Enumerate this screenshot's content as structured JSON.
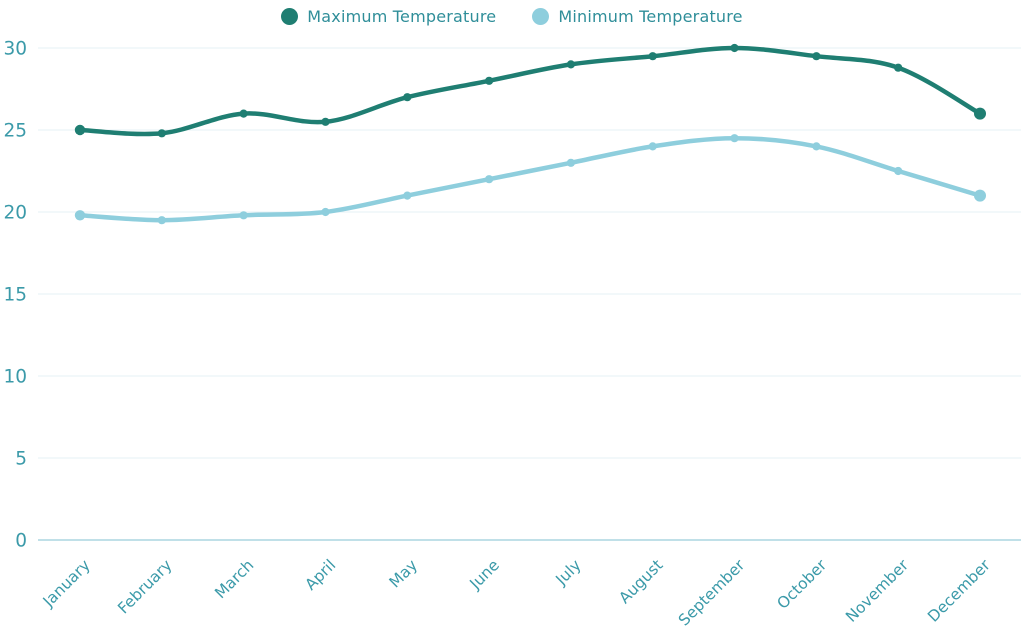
{
  "chart_data": {
    "type": "line",
    "title": "",
    "xlabel": "",
    "ylabel": "",
    "curve": "smooth",
    "grid": true,
    "legend_position": "top",
    "categories": [
      "January",
      "February",
      "March",
      "April",
      "May",
      "June",
      "July",
      "August",
      "September",
      "October",
      "November",
      "December"
    ],
    "series": [
      {
        "name": "Maximum Temperature",
        "color": "#1f7e72",
        "values": [
          25,
          24.8,
          26,
          25.5,
          27,
          28,
          29,
          29.5,
          30,
          29.5,
          28.8,
          26
        ]
      },
      {
        "name": "Minimum Temperature",
        "color": "#8ecedd",
        "values": [
          19.8,
          19.5,
          19.8,
          20,
          21,
          22,
          23,
          24,
          24.5,
          24,
          22.5,
          21
        ]
      }
    ],
    "ylim": [
      0,
      30
    ],
    "yticks": [
      0,
      5,
      10,
      15,
      20,
      25,
      30
    ]
  },
  "legend": {
    "items": [
      {
        "label": "Maximum Temperature",
        "color": "#1f7e72"
      },
      {
        "label": "Minimum Temperature",
        "color": "#8ecedd"
      }
    ]
  },
  "colors": {
    "axis_label": "#3b9aa9",
    "legend_label": "#2f8e99",
    "gridline": "#e6f0f4",
    "baseline": "#abd5e0",
    "background": "#ffffff"
  }
}
